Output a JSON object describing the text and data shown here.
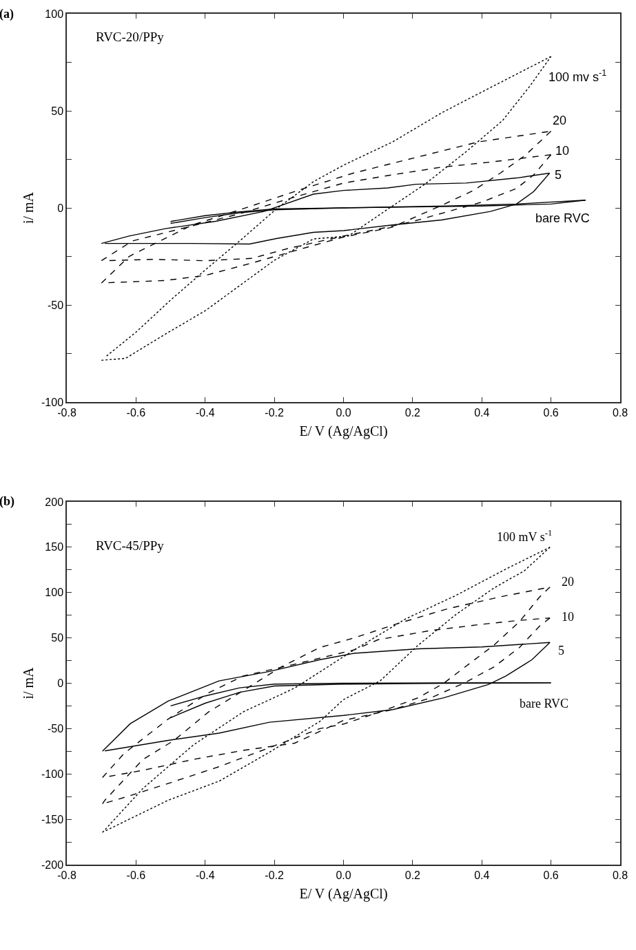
{
  "chart_data": [
    {
      "type": "line",
      "xlabel": "E/ V (Ag/AgCl)",
      "ylabel": "i/ mA",
      "xlim": [
        -0.8,
        0.8
      ],
      "xticks": [
        -0.8,
        -0.6,
        -0.4,
        -0.2,
        {
          "value": 0,
          "label": "0.0"
        },
        0.2,
        0.4,
        0.6,
        0.8
      ],
      "ylim": [
        -100,
        100
      ],
      "yticks": [
        -100,
        {
          "value": -75,
          "label": null
        },
        -50,
        {
          "value": -25,
          "label": null
        },
        0,
        {
          "value": 25,
          "label": null
        },
        50,
        {
          "value": 75,
          "label": null
        },
        100
      ],
      "annotations": [
        "(a)",
        "RVC-20/PPy"
      ],
      "series": [
        {
          "name": "100 mv s$^{-1}$",
          "color": "#000000",
          "line_style": "dotted",
          "x": [
            -0.7,
            -0.63,
            -0.515,
            -0.4,
            -0.3,
            -0.2,
            -0.087,
            0.014,
            0.14,
            0.234,
            0.355,
            0.46,
            0.54,
            0.6
          ],
          "values": [
            -78.5,
            -77.5,
            -65,
            -53,
            -40,
            -27,
            -16,
            -14.5,
            0.8,
            12,
            29,
            45,
            63,
            78
          ]
        },
        {
          "color": "#000000",
          "line_style": "dotted",
          "x": [
            0.6,
            0.425,
            0.284,
            0.142,
            0.0,
            -0.087,
            -0.194,
            -0.3,
            -0.4,
            -0.5,
            -0.6,
            -0.69
          ],
          "values": [
            78,
            62,
            49,
            34,
            22,
            13.5,
            -0.5,
            -17,
            -32,
            -47.5,
            -64,
            -77
          ]
        },
        {
          "name": "20",
          "color": "#000000",
          "line_style": "dashed",
          "x": [
            -0.7,
            -0.62,
            -0.53,
            -0.44,
            -0.3,
            -0.12,
            0.03,
            0.21,
            0.39,
            0.6
          ],
          "values": [
            -38.7,
            -25,
            -17,
            -9,
            -1,
            9.7,
            18,
            26,
            34,
            39.5
          ]
        },
        {
          "color": "#000000",
          "line_style": "dashed",
          "x": [
            0.6,
            0.525,
            0.454,
            0.376,
            0.28,
            0.14,
            0.0,
            -0.12,
            -0.265,
            -0.4,
            -0.515,
            -0.69
          ],
          "values": [
            39.5,
            27,
            18,
            9,
            1,
            -10,
            -15,
            -21,
            -28.4,
            -34.8,
            -37.4,
            -38.6
          ]
        },
        {
          "name": "10",
          "color": "#000000",
          "line_style": "dashed",
          "x": [
            -0.7,
            -0.61,
            -0.44,
            -0.3,
            -0.16,
            0.0,
            0.14,
            0.284,
            0.425,
            0.6
          ],
          "values": [
            -27.2,
            -17,
            -9.4,
            -3,
            4.6,
            12.8,
            17,
            21,
            23.6,
            27.4
          ]
        },
        {
          "color": "#000000",
          "line_style": "dashed",
          "x": [
            0.6,
            0.55,
            0.5,
            0.4,
            0.3,
            0.2,
            0.1,
            0.0,
            -0.16,
            -0.265,
            -0.4,
            -0.55,
            -0.69
          ],
          "values": [
            27.4,
            17,
            10,
            3,
            -2,
            -7,
            -11,
            -14.5,
            -20.9,
            -26,
            -27.2,
            -26.5,
            -27.2
          ]
        },
        {
          "name": "5",
          "color": "#000000",
          "line_style": "solid",
          "x": [
            -0.7,
            -0.62,
            -0.515,
            -0.37,
            -0.23,
            -0.087,
            0.0,
            0.128,
            0.21,
            0.355,
            0.5,
            0.596
          ],
          "values": [
            -18.3,
            -14.5,
            -10.7,
            -6.9,
            -1.8,
            7.1,
            9,
            10.3,
            12.2,
            12.8,
            15.4,
            17.9
          ]
        },
        {
          "color": "#000000",
          "line_style": "solid",
          "x": [
            0.596,
            0.55,
            0.5,
            0.425,
            0.284,
            0.142,
            0.0,
            -0.087,
            -0.194,
            -0.272,
            -0.44,
            -0.69
          ],
          "values": [
            17.9,
            8.4,
            2,
            -1.8,
            -6.2,
            -8.8,
            -11.7,
            -12.6,
            -15.8,
            -18.6,
            -18.3,
            -18.3
          ]
        },
        {
          "name": "bare RVC",
          "color": "#000000",
          "line_style": "solid",
          "x": [
            -0.5,
            -0.4,
            -0.3,
            -0.2,
            0.0,
            0.3,
            0.5,
            0.7
          ],
          "values": [
            -7,
            -4,
            -2,
            -0.5,
            0,
            1,
            2,
            4
          ]
        },
        {
          "color": "#000000",
          "line_style": "solid",
          "x": [
            0.7,
            0.6,
            0.4,
            0.2,
            0.0,
            -0.2,
            -0.3,
            -0.4,
            -0.5
          ],
          "values": [
            4,
            2,
            1,
            0.5,
            0,
            -1,
            -2.5,
            -5,
            -8
          ]
        }
      ]
    },
    {
      "type": "line",
      "xlabel": "E/ V (Ag/AgCl)",
      "ylabel": "i/ mA",
      "xlim": [
        -0.8,
        0.8
      ],
      "xticks": [
        -0.8,
        -0.6,
        -0.4,
        -0.2,
        {
          "value": 0,
          "label": "0.0"
        },
        0.2,
        0.4,
        0.6,
        0.8
      ],
      "ylim": [
        -200,
        200
      ],
      "yticks": [
        -200,
        {
          "value": -175,
          "label": null
        },
        -150,
        {
          "value": -125,
          "label": null
        },
        -100,
        {
          "value": -75,
          "label": null
        },
        -50,
        {
          "value": -25,
          "label": null
        },
        0,
        {
          "value": 25,
          "label": null
        },
        50,
        {
          "value": 75,
          "label": null
        },
        100,
        {
          "value": 125,
          "label": null
        },
        150,
        {
          "value": 175,
          "label": null
        },
        200
      ],
      "annotations": [
        "(b)",
        "RVC-45/PPy"
      ],
      "series": [
        {
          "name": "100 mV s$^{-1}$",
          "color": "#000000",
          "line_style": "dotted",
          "x": [
            -0.697,
            -0.58,
            -0.434,
            -0.29,
            -0.141,
            0.031,
            0.18,
            0.326,
            0.47,
            0.597
          ],
          "values": [
            -164.5,
            -116,
            -68,
            -31.6,
            -5.3,
            36.8,
            71,
            97,
            126,
            150
          ]
        },
        {
          "color": "#000000",
          "line_style": "dotted",
          "x": [
            0.597,
            0.523,
            0.435,
            0.326,
            0.216,
            0.106,
            0.0,
            -0.068,
            -0.214,
            -0.36,
            -0.507,
            -0.69
          ],
          "values": [
            150,
            124,
            105,
            76,
            42,
            2.6,
            -18,
            -42,
            -76,
            -108,
            -129,
            -163
          ]
        },
        {
          "name": "20",
          "color": "#000000",
          "line_style": "dashed",
          "x": [
            -0.697,
            -0.69,
            -0.58,
            -0.49,
            -0.39,
            -0.29,
            -0.18,
            -0.068,
            0.031,
            0.15,
            0.3,
            0.45,
            0.597
          ],
          "values": [
            -133,
            -129,
            -84,
            -63,
            -31.6,
            -8,
            18,
            39.5,
            50,
            65,
            82,
            95,
            106
          ]
        },
        {
          "color": "#000000",
          "line_style": "dashed",
          "x": [
            0.597,
            0.567,
            0.509,
            0.435,
            0.362,
            0.29,
            0.216,
            0.106,
            0.0,
            -0.068,
            -0.214,
            -0.36,
            -0.507,
            -0.617,
            -0.69
          ],
          "values": [
            106,
            95,
            68,
            42,
            21,
            0,
            -16,
            -31.6,
            -45,
            -50,
            -71,
            -92,
            -110.5,
            -124,
            -132.2
          ]
        },
        {
          "name": "10",
          "color": "#000000",
          "line_style": "dashed",
          "x": [
            -0.697,
            -0.635,
            -0.507,
            -0.39,
            -0.29,
            -0.141,
            0.031,
            0.1,
            0.25,
            0.4,
            0.5,
            0.597
          ],
          "values": [
            -104,
            -77.6,
            -39.5,
            -10.5,
            8,
            21,
            36.8,
            48,
            58,
            65,
            69,
            72
          ]
        },
        {
          "color": "#000000",
          "line_style": "dashed",
          "x": [
            0.597,
            0.567,
            0.509,
            0.435,
            0.348,
            0.253,
            0.143,
            0.0,
            -0.141,
            -0.29,
            -0.434,
            -0.58,
            -0.69
          ],
          "values": [
            72,
            63,
            39.5,
            18,
            0,
            -16,
            -29,
            -41,
            -66,
            -74,
            -84,
            -96,
            -103.5
          ]
        },
        {
          "name": "5",
          "color": "#000000",
          "line_style": "solid",
          "x": [
            -0.697,
            -0.617,
            -0.507,
            -0.36,
            -0.214,
            -0.068,
            0.031,
            0.216,
            0.4,
            0.597
          ],
          "values": [
            -75,
            -44.7,
            -19.7,
            2.6,
            13,
            26,
            33,
            38,
            40,
            45
          ]
        },
        {
          "color": "#000000",
          "line_style": "solid",
          "x": [
            0.597,
            0.545,
            0.47,
            0.42,
            0.29,
            0.143,
            0.0,
            -0.214,
            -0.36,
            -0.507,
            -0.69
          ],
          "values": [
            45,
            26,
            8,
            -1.3,
            -16,
            -29,
            -35.5,
            -43,
            -55,
            -63,
            -74.6
          ]
        },
        {
          "name": "bare RVC",
          "color": "#000000",
          "line_style": "solid",
          "x": [
            -0.5,
            -0.4,
            -0.3,
            -0.2,
            0.0,
            0.3,
            0.6
          ],
          "values": [
            -25,
            -14,
            -5,
            -1,
            0,
            0.5,
            0.5
          ]
        },
        {
          "color": "#000000",
          "line_style": "solid",
          "x": [
            0.6,
            0.3,
            0.0,
            -0.2,
            -0.3,
            -0.4,
            -0.5
          ],
          "values": [
            0.5,
            0,
            -1,
            -3,
            -10,
            -22,
            -38
          ]
        }
      ]
    }
  ]
}
